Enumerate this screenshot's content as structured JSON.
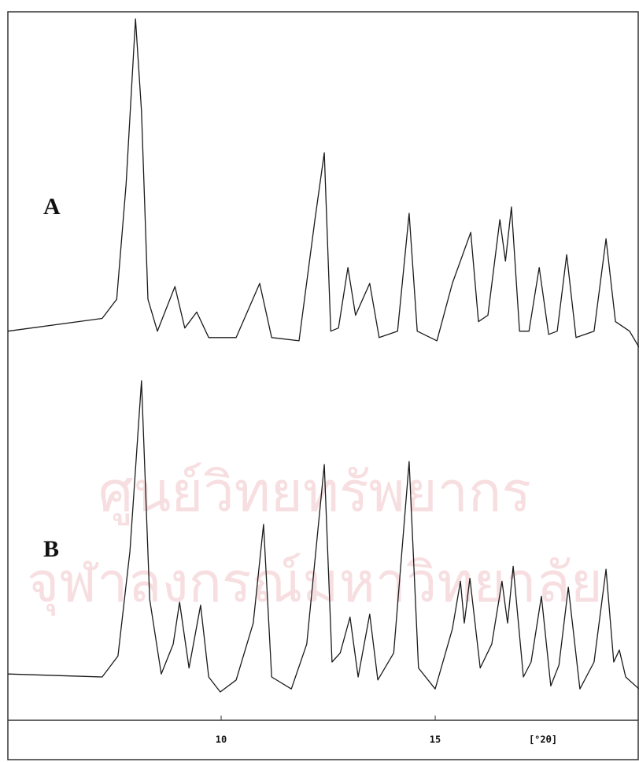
{
  "watermark": [
    "ศูนย์วิทยทรัพยากร",
    "จุฬาลงกรณ์มหาวิทยาลัย"
  ],
  "chart_data": [
    {
      "type": "line",
      "annotation": "A",
      "color": "#1a1a1a",
      "xlim": [
        5,
        19.76
      ],
      "ylim": [
        -5,
        100
      ],
      "x": [
        5.02,
        7.22,
        7.56,
        7.78,
        8.0,
        8.14,
        8.29,
        8.51,
        8.92,
        9.15,
        9.43,
        9.71,
        10.35,
        10.9,
        11.18,
        11.82,
        12.19,
        12.41,
        12.56,
        12.74,
        12.96,
        13.14,
        13.47,
        13.69,
        14.12,
        14.39,
        14.58,
        15.04,
        15.4,
        15.83,
        16.01,
        16.23,
        16.51,
        16.64,
        16.78,
        16.97,
        17.19,
        17.43,
        17.65,
        17.85,
        18.07,
        18.29,
        18.71,
        18.99,
        19.21,
        19.54,
        19.76
      ],
      "values": [
        1,
        5,
        11,
        47,
        99,
        70,
        11,
        1,
        15,
        2,
        7,
        -1,
        -1,
        16,
        -1,
        -2,
        36,
        57,
        1,
        2,
        21,
        6,
        16,
        -1,
        1,
        38,
        1,
        -2,
        16,
        32,
        4,
        6,
        36,
        23,
        40,
        1,
        1,
        21,
        0,
        1,
        25,
        -1,
        1,
        30,
        4,
        1,
        -4
      ]
    },
    {
      "type": "line",
      "annotation": "B",
      "color": "#1a1a1a",
      "xlim": [
        5,
        19.76
      ],
      "ylim": [
        -5,
        100
      ],
      "xticks": [
        10,
        15
      ],
      "xlabel": "[°2θ]",
      "x": [
        5.02,
        7.22,
        7.59,
        7.87,
        8.14,
        8.33,
        8.6,
        8.88,
        9.03,
        9.25,
        9.52,
        9.71,
        9.98,
        10.35,
        10.75,
        10.99,
        11.18,
        11.64,
        12.0,
        12.41,
        12.59,
        12.78,
        13.01,
        13.2,
        13.47,
        13.66,
        14.03,
        14.39,
        14.61,
        15.0,
        15.4,
        15.59,
        15.68,
        15.81,
        16.05,
        16.32,
        16.56,
        16.69,
        16.82,
        17.06,
        17.24,
        17.48,
        17.7,
        17.89,
        18.11,
        18.38,
        18.71,
        18.99,
        19.17,
        19.3,
        19.45,
        19.76
      ],
      "values": [
        1,
        0,
        7,
        42,
        99,
        26,
        1,
        11,
        25,
        3,
        24,
        0,
        -5,
        -1,
        18,
        51,
        0,
        -4,
        11,
        71,
        5,
        8,
        20,
        0,
        21,
        -1,
        8,
        72,
        3,
        -4,
        16,
        32,
        18,
        33,
        3,
        11,
        32,
        18,
        37,
        0,
        5,
        27,
        -3,
        4,
        30,
        -4,
        5,
        36,
        5,
        9,
        0,
        -4
      ]
    }
  ]
}
